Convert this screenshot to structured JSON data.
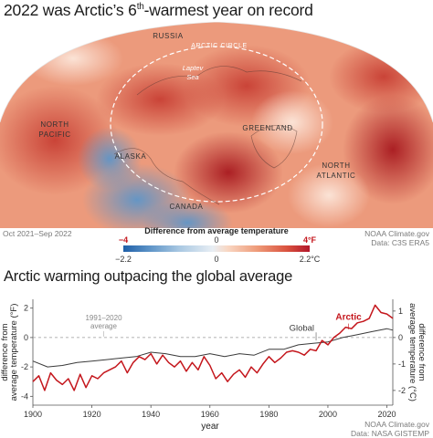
{
  "header": {
    "title_main": "2022 was Arctic’s 6",
    "title_sup": "th",
    "title_end": "-warmest year on record"
  },
  "map": {
    "labels": [
      "RUSSIA",
      "ARCTIC CIRCLE",
      "Laptev",
      "Sea",
      "NORTH",
      "PACIFIC",
      "GREENLAND",
      "NORTH",
      "ATLANTIC",
      "ALASKA",
      "CANADA"
    ],
    "period": "Oct 2021–Sep 2022",
    "credit_line1": "NOAA Climate.gov",
    "credit_line2": "Data: C3S ERA5"
  },
  "legend": {
    "title": "Difference from average temperature",
    "f_min": "−4",
    "f_mid": "0",
    "f_max": "4°F",
    "c_min": "−2.2",
    "c_mid": "0",
    "c_max": "2.2°C",
    "colors": [
      "#1f5fa8",
      "#5c93c7",
      "#a9c8e2",
      "#e8eef4",
      "#f9d7c3",
      "#ee9a78",
      "#d9513e",
      "#b2172b"
    ]
  },
  "chart_title": "Arctic warming outpacing the global average",
  "chart_data": {
    "type": "line",
    "title": "Arctic warming outpacing the global average",
    "xlabel": "year",
    "ylabel_left": [
      "difference from",
      "average temperature (°F)"
    ],
    "ylabel_right": [
      "difference from",
      "average temperature (°C)"
    ],
    "xlim": [
      1900,
      2022
    ],
    "ylim_f": [
      -4.6,
      2.6
    ],
    "ylim_c": [
      -2.556,
      1.444
    ],
    "xticks": [
      1900,
      1920,
      1940,
      1960,
      1980,
      2000,
      2020
    ],
    "yticks_f": [
      2,
      0,
      -2,
      -4
    ],
    "yticks_c": [
      1,
      0,
      -1,
      -2
    ],
    "baseline_label": "1991–2020",
    "baseline_label2": "average",
    "grid": false,
    "series": [
      {
        "name": "Global",
        "color": "#3a3a3a",
        "x": [
          1900,
          1905,
          1910,
          1915,
          1920,
          1925,
          1930,
          1935,
          1940,
          1945,
          1950,
          1955,
          1960,
          1965,
          1970,
          1975,
          1980,
          1985,
          1990,
          1995,
          2000,
          2005,
          2010,
          2015,
          2020,
          2022
        ],
        "values": [
          -1.6,
          -2.0,
          -1.9,
          -1.7,
          -1.6,
          -1.5,
          -1.4,
          -1.3,
          -1.0,
          -1.1,
          -1.3,
          -1.3,
          -1.1,
          -1.3,
          -1.1,
          -1.2,
          -0.8,
          -0.8,
          -0.5,
          -0.4,
          -0.3,
          0.0,
          0.2,
          0.4,
          0.6,
          0.5
        ]
      },
      {
        "name": "Arctic",
        "color": "#c4161c",
        "x": [
          1900,
          1902,
          1904,
          1906,
          1908,
          1910,
          1912,
          1914,
          1916,
          1918,
          1920,
          1922,
          1924,
          1926,
          1928,
          1930,
          1932,
          1934,
          1936,
          1938,
          1940,
          1942,
          1944,
          1946,
          1948,
          1950,
          1952,
          1954,
          1956,
          1958,
          1960,
          1962,
          1964,
          1966,
          1968,
          1970,
          1972,
          1974,
          1976,
          1978,
          1980,
          1982,
          1984,
          1986,
          1988,
          1990,
          1992,
          1994,
          1996,
          1998,
          2000,
          2002,
          2004,
          2006,
          2008,
          2010,
          2012,
          2014,
          2016,
          2018,
          2020,
          2022
        ],
        "values": [
          -3.0,
          -2.6,
          -3.6,
          -2.4,
          -2.9,
          -3.2,
          -2.8,
          -3.6,
          -2.5,
          -3.4,
          -2.6,
          -2.8,
          -2.4,
          -2.2,
          -2.0,
          -1.6,
          -2.4,
          -1.7,
          -1.3,
          -1.5,
          -1.1,
          -1.8,
          -1.2,
          -1.7,
          -2.0,
          -1.6,
          -2.3,
          -1.7,
          -2.2,
          -1.3,
          -1.9,
          -2.8,
          -2.4,
          -3.0,
          -2.5,
          -2.2,
          -2.7,
          -2.0,
          -2.4,
          -1.8,
          -1.3,
          -1.7,
          -1.4,
          -1.0,
          -0.9,
          -1.0,
          -1.2,
          -0.8,
          -0.9,
          -0.2,
          -0.5,
          0.0,
          0.3,
          0.7,
          0.6,
          1.0,
          1.1,
          1.3,
          2.2,
          1.7,
          1.6,
          1.3
        ]
      }
    ],
    "credit_line1": "NOAA Climate.gov",
    "credit_line2": "Data: NASA GISTEMP"
  }
}
